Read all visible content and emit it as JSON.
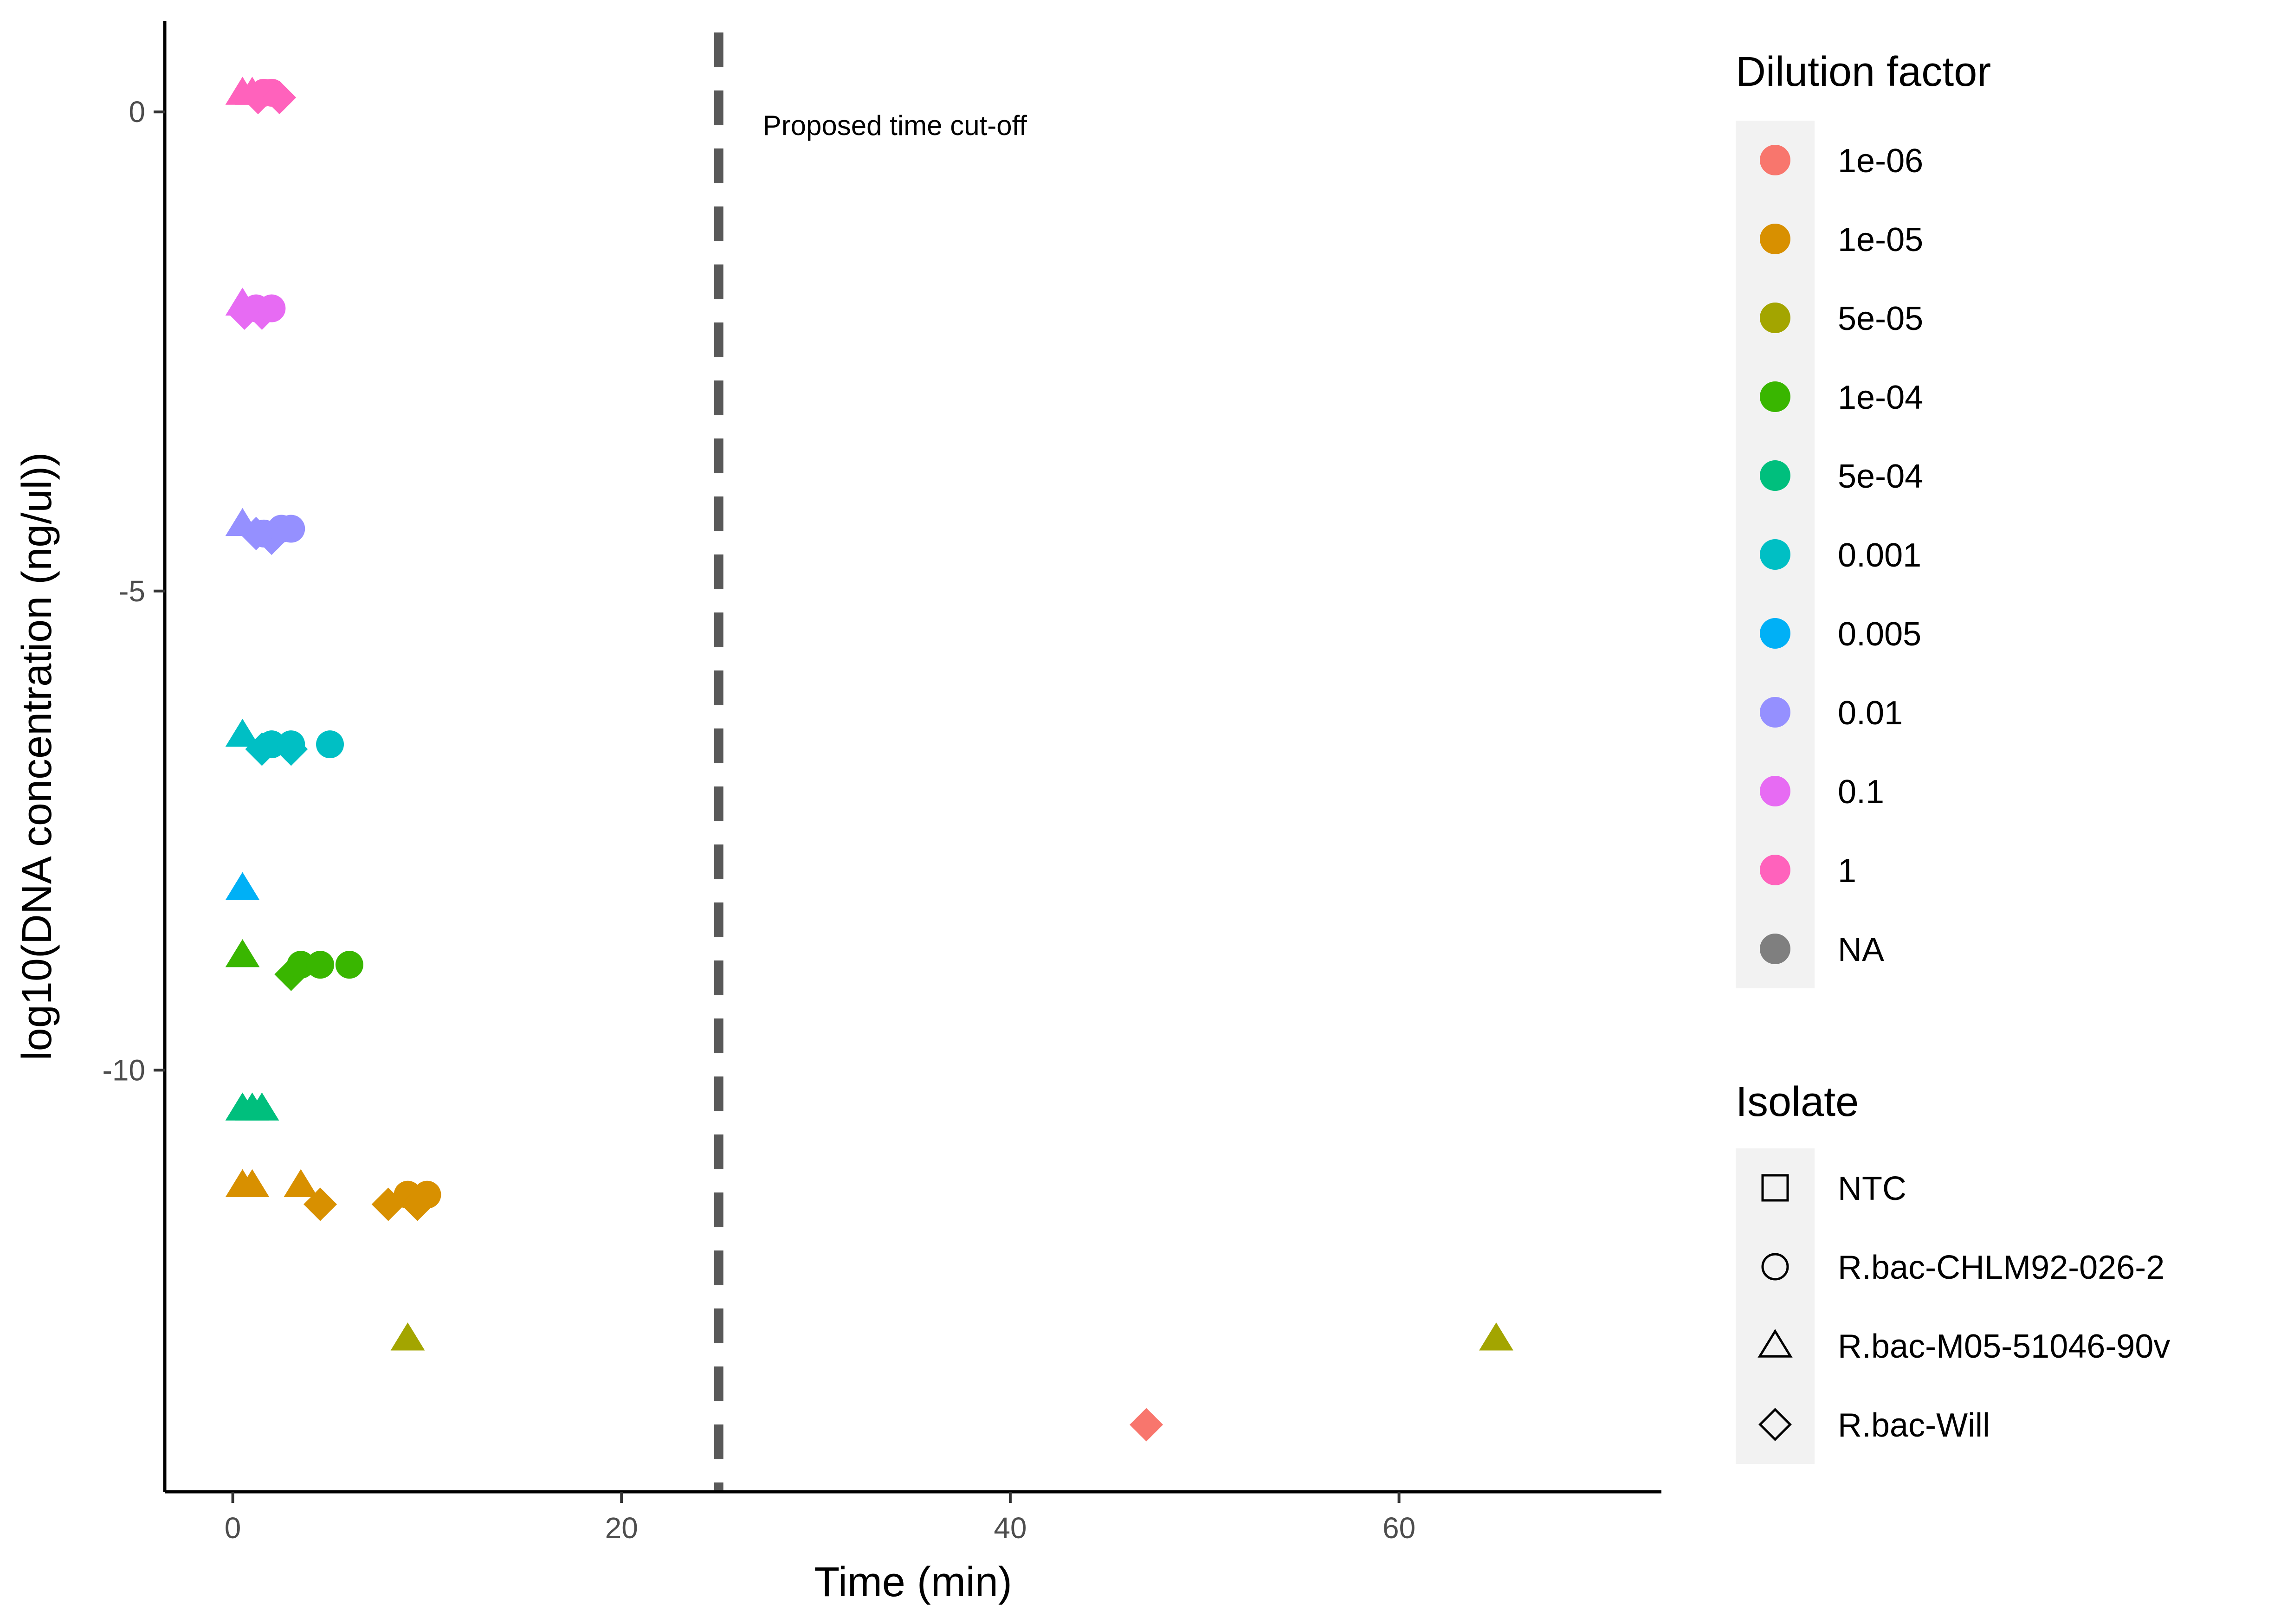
{
  "chart_data": {
    "type": "scatter",
    "title": "",
    "xlabel": "Time (min)",
    "ylabel": "log10(DNA concentration (ng/ul))",
    "xlim": [
      -3.5,
      73.5
    ],
    "ylim": [
      -14.4,
      0.95
    ],
    "x_ticks": [
      0,
      20,
      40,
      60
    ],
    "y_ticks": [
      0,
      -5,
      -10
    ],
    "x_tick_labels": [
      "0",
      "20",
      "40",
      "60"
    ],
    "y_tick_labels": [
      "0",
      "-5",
      "-10"
    ],
    "grid": false,
    "legend_position": "right",
    "vline": {
      "x": 25,
      "style": "dashed",
      "color": "#595959",
      "label": "Proposed time cut-off"
    },
    "color_legend": {
      "title": "Dilution factor",
      "entries": [
        {
          "label": "1e-06",
          "color": "#F8766D"
        },
        {
          "label": "1e-05",
          "color": "#D89000"
        },
        {
          "label": "5e-05",
          "color": "#A3A500"
        },
        {
          "label": "1e-04",
          "color": "#39B600"
        },
        {
          "label": "5e-04",
          "color": "#00BF7D"
        },
        {
          "label": "0.001",
          "color": "#00BFC4"
        },
        {
          "label": "0.005",
          "color": "#00B0F6"
        },
        {
          "label": "0.01",
          "color": "#9590FF"
        },
        {
          "label": "0.1",
          "color": "#E76BF3"
        },
        {
          "label": "1",
          "color": "#FF62BC"
        },
        {
          "label": "NA",
          "color": "#7F7F7F"
        }
      ]
    },
    "shape_legend": {
      "title": "Isolate",
      "entries": [
        {
          "label": "NTC",
          "shape": "square"
        },
        {
          "label": "R.bac-CHLM92-026-2",
          "shape": "circle"
        },
        {
          "label": "R.bac-M05-51046-90v",
          "shape": "triangle"
        },
        {
          "label": "R.bac-Will",
          "shape": "diamond"
        }
      ]
    },
    "points": [
      {
        "x": 0.5,
        "y": 0.2,
        "dilution": "1",
        "isolate": "R.bac-M05-51046-90v"
      },
      {
        "x": 1.0,
        "y": 0.2,
        "dilution": "1",
        "isolate": "R.bac-M05-51046-90v"
      },
      {
        "x": 1.3,
        "y": 0.15,
        "dilution": "1",
        "isolate": "R.bac-Will"
      },
      {
        "x": 1.6,
        "y": 0.2,
        "dilution": "1",
        "isolate": "R.bac-CHLM92-026-2"
      },
      {
        "x": 2.0,
        "y": 0.2,
        "dilution": "1",
        "isolate": "R.bac-CHLM92-026-2"
      },
      {
        "x": 2.4,
        "y": 0.15,
        "dilution": "1",
        "isolate": "R.bac-Will"
      },
      {
        "x": 0.5,
        "y": -2.0,
        "dilution": "0.1",
        "isolate": "R.bac-M05-51046-90v"
      },
      {
        "x": 0.6,
        "y": -2.1,
        "dilution": "0.1",
        "isolate": "R.bac-Will"
      },
      {
        "x": 1.2,
        "y": -2.05,
        "dilution": "0.1",
        "isolate": "R.bac-CHLM92-026-2"
      },
      {
        "x": 1.5,
        "y": -2.1,
        "dilution": "0.1",
        "isolate": "R.bac-Will"
      },
      {
        "x": 2.0,
        "y": -2.05,
        "dilution": "0.1",
        "isolate": "R.bac-CHLM92-026-2"
      },
      {
        "x": 0.5,
        "y": -4.3,
        "dilution": "0.01",
        "isolate": "R.bac-M05-51046-90v"
      },
      {
        "x": 1.2,
        "y": -4.4,
        "dilution": "0.01",
        "isolate": "R.bac-Will"
      },
      {
        "x": 1.6,
        "y": -4.4,
        "dilution": "0.01",
        "isolate": "R.bac-CHLM92-026-2"
      },
      {
        "x": 2.0,
        "y": -4.45,
        "dilution": "0.01",
        "isolate": "R.bac-Will"
      },
      {
        "x": 2.5,
        "y": -4.35,
        "dilution": "0.01",
        "isolate": "R.bac-CHLM92-026-2"
      },
      {
        "x": 3.0,
        "y": -4.35,
        "dilution": "0.01",
        "isolate": "R.bac-CHLM92-026-2"
      },
      {
        "x": 0.5,
        "y": -6.5,
        "dilution": "0.001",
        "isolate": "R.bac-M05-51046-90v"
      },
      {
        "x": 1.5,
        "y": -6.65,
        "dilution": "0.001",
        "isolate": "R.bac-Will"
      },
      {
        "x": 2.0,
        "y": -6.6,
        "dilution": "0.001",
        "isolate": "R.bac-CHLM92-026-2"
      },
      {
        "x": 3.0,
        "y": -6.65,
        "dilution": "0.001",
        "isolate": "R.bac-Will"
      },
      {
        "x": 3.0,
        "y": -6.6,
        "dilution": "0.001",
        "isolate": "R.bac-CHLM92-026-2"
      },
      {
        "x": 5.0,
        "y": -6.6,
        "dilution": "0.001",
        "isolate": "R.bac-CHLM92-026-2"
      },
      {
        "x": 0.5,
        "y": -8.1,
        "dilution": "0.005",
        "isolate": "R.bac-M05-51046-90v"
      },
      {
        "x": 0.5,
        "y": -8.8,
        "dilution": "1e-04",
        "isolate": "R.bac-M05-51046-90v"
      },
      {
        "x": 3.0,
        "y": -9.0,
        "dilution": "1e-04",
        "isolate": "R.bac-Will"
      },
      {
        "x": 3.5,
        "y": -8.9,
        "dilution": "1e-04",
        "isolate": "R.bac-CHLM92-026-2"
      },
      {
        "x": 4.5,
        "y": -8.9,
        "dilution": "1e-04",
        "isolate": "R.bac-CHLM92-026-2"
      },
      {
        "x": 6.0,
        "y": -8.9,
        "dilution": "1e-04",
        "isolate": "R.bac-CHLM92-026-2"
      },
      {
        "x": 0.5,
        "y": -10.4,
        "dilution": "5e-04",
        "isolate": "R.bac-M05-51046-90v"
      },
      {
        "x": 1.0,
        "y": -10.4,
        "dilution": "5e-04",
        "isolate": "R.bac-M05-51046-90v"
      },
      {
        "x": 1.5,
        "y": -10.4,
        "dilution": "5e-04",
        "isolate": "R.bac-M05-51046-90v"
      },
      {
        "x": 0.5,
        "y": -11.2,
        "dilution": "1e-05",
        "isolate": "R.bac-M05-51046-90v"
      },
      {
        "x": 1.0,
        "y": -11.2,
        "dilution": "1e-05",
        "isolate": "R.bac-M05-51046-90v"
      },
      {
        "x": 3.5,
        "y": -11.2,
        "dilution": "1e-05",
        "isolate": "R.bac-M05-51046-90v"
      },
      {
        "x": 4.5,
        "y": -11.4,
        "dilution": "1e-05",
        "isolate": "R.bac-Will"
      },
      {
        "x": 8.0,
        "y": -11.4,
        "dilution": "1e-05",
        "isolate": "R.bac-Will"
      },
      {
        "x": 9.0,
        "y": -11.3,
        "dilution": "1e-05",
        "isolate": "R.bac-CHLM92-026-2"
      },
      {
        "x": 9.5,
        "y": -11.4,
        "dilution": "1e-05",
        "isolate": "R.bac-Will"
      },
      {
        "x": 10.0,
        "y": -11.3,
        "dilution": "1e-05",
        "isolate": "R.bac-CHLM92-026-2"
      },
      {
        "x": 9.0,
        "y": -12.8,
        "dilution": "5e-05",
        "isolate": "R.bac-M05-51046-90v"
      },
      {
        "x": 65.0,
        "y": -12.8,
        "dilution": "5e-05",
        "isolate": "R.bac-M05-51046-90v"
      },
      {
        "x": 47.0,
        "y": -13.7,
        "dilution": "1e-06",
        "isolate": "R.bac-Will"
      }
    ]
  }
}
